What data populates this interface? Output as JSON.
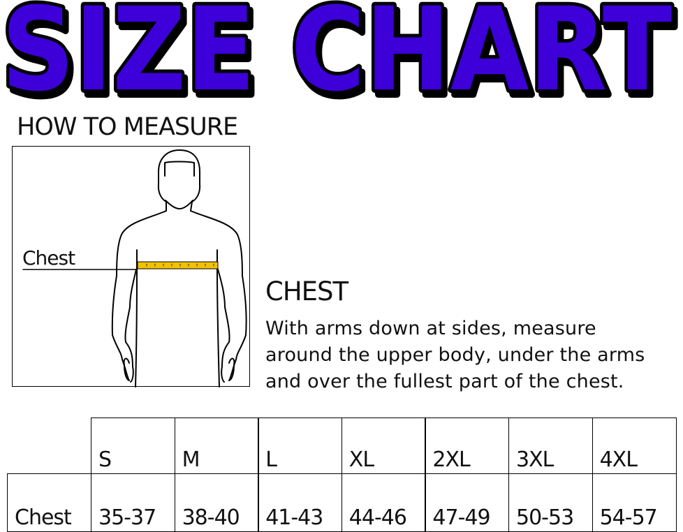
{
  "title": "SIZE CHART",
  "colors": {
    "title_fill": "#3d00d9",
    "title_outline": "#000000",
    "tape": "#f2c200"
  },
  "how_to_measure": {
    "heading": "HOW TO MEASURE",
    "figure_label": "Chest"
  },
  "chest": {
    "heading": "CHEST",
    "description": [
      "With arms down at sides, measure",
      "around the upper body, under the arms",
      "and over the fullest part of the chest."
    ]
  },
  "size_table": {
    "sizes": [
      "S",
      "M",
      "L",
      "XL",
      "2XL",
      "3XL",
      "4XL"
    ],
    "rows": [
      {
        "label": "Chest",
        "values": [
          "35-37",
          "38-40",
          "41-43",
          "44-46",
          "47-49",
          "50-53",
          "54-57"
        ]
      }
    ]
  }
}
